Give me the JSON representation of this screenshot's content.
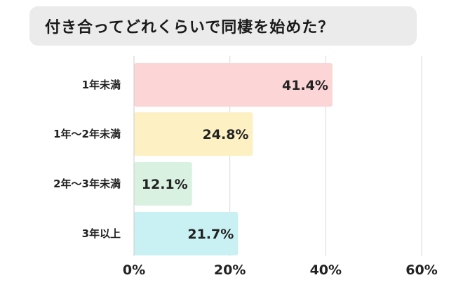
{
  "title": "付き合ってどれくらいで同棲を始めた？",
  "chart_data": {
    "type": "bar",
    "orientation": "horizontal",
    "title": "付き合ってどれくらいで同棲を始めた？",
    "categories": [
      "1年未満",
      "1年〜2年未満",
      "2年〜3年未満",
      "3年以上"
    ],
    "values": [
      41.4,
      24.8,
      12.1,
      21.7
    ],
    "value_labels": [
      "41.4%",
      "24.8%",
      "12.1%",
      "21.7%"
    ],
    "bar_colors": [
      "#fcd6d6",
      "#fdf1c4",
      "#d9f1e1",
      "#c9f0f2"
    ],
    "xlim": [
      0,
      60
    ],
    "x_ticks": [
      0,
      20,
      40,
      60
    ],
    "x_tick_labels": [
      "0%",
      "20%",
      "40%",
      "60%"
    ],
    "grid": true
  }
}
